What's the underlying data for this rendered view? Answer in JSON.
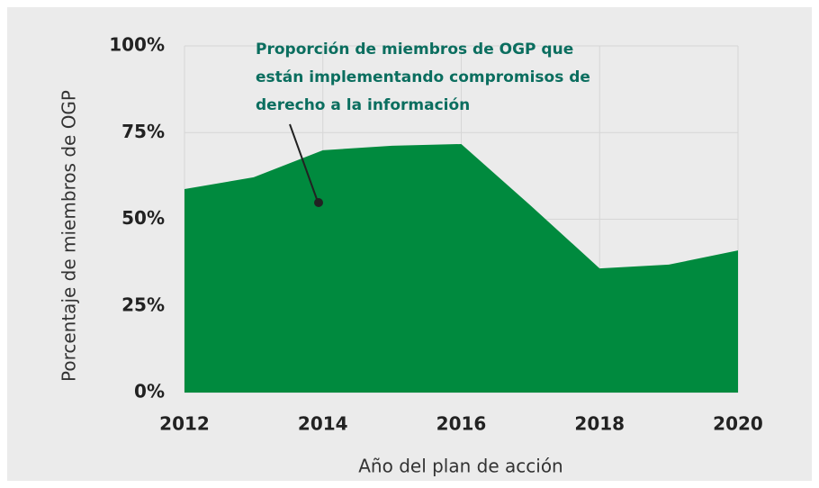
{
  "chart_data": {
    "type": "area",
    "x": [
      2012,
      2013,
      2014,
      2015,
      2016,
      2017,
      2018,
      2019,
      2020
    ],
    "values": [
      58.7,
      62.1,
      69.9,
      71.2,
      71.7,
      54,
      35.8,
      36.9,
      41
    ],
    "color": "#008a3e",
    "xlim": [
      2012,
      2020
    ],
    "xticks": [
      2012,
      2014,
      2016,
      2018,
      2020
    ],
    "ylim": [
      0,
      100
    ],
    "yticks": [
      {
        "value": 0,
        "label": "0%"
      },
      {
        "value": 25,
        "label": "25%"
      },
      {
        "value": 50,
        "label": "50%"
      },
      {
        "value": 75,
        "label": "75%"
      },
      {
        "value": 100,
        "label": "100%"
      }
    ],
    "grid": true,
    "xlabel": "Año del plan de acción",
    "ylabel": "Porcentaje de miembros de OGP",
    "annotation": [
      "Proporción de miembros de OGP que",
      "están implementando compromisos de",
      "derecho a la información"
    ]
  }
}
